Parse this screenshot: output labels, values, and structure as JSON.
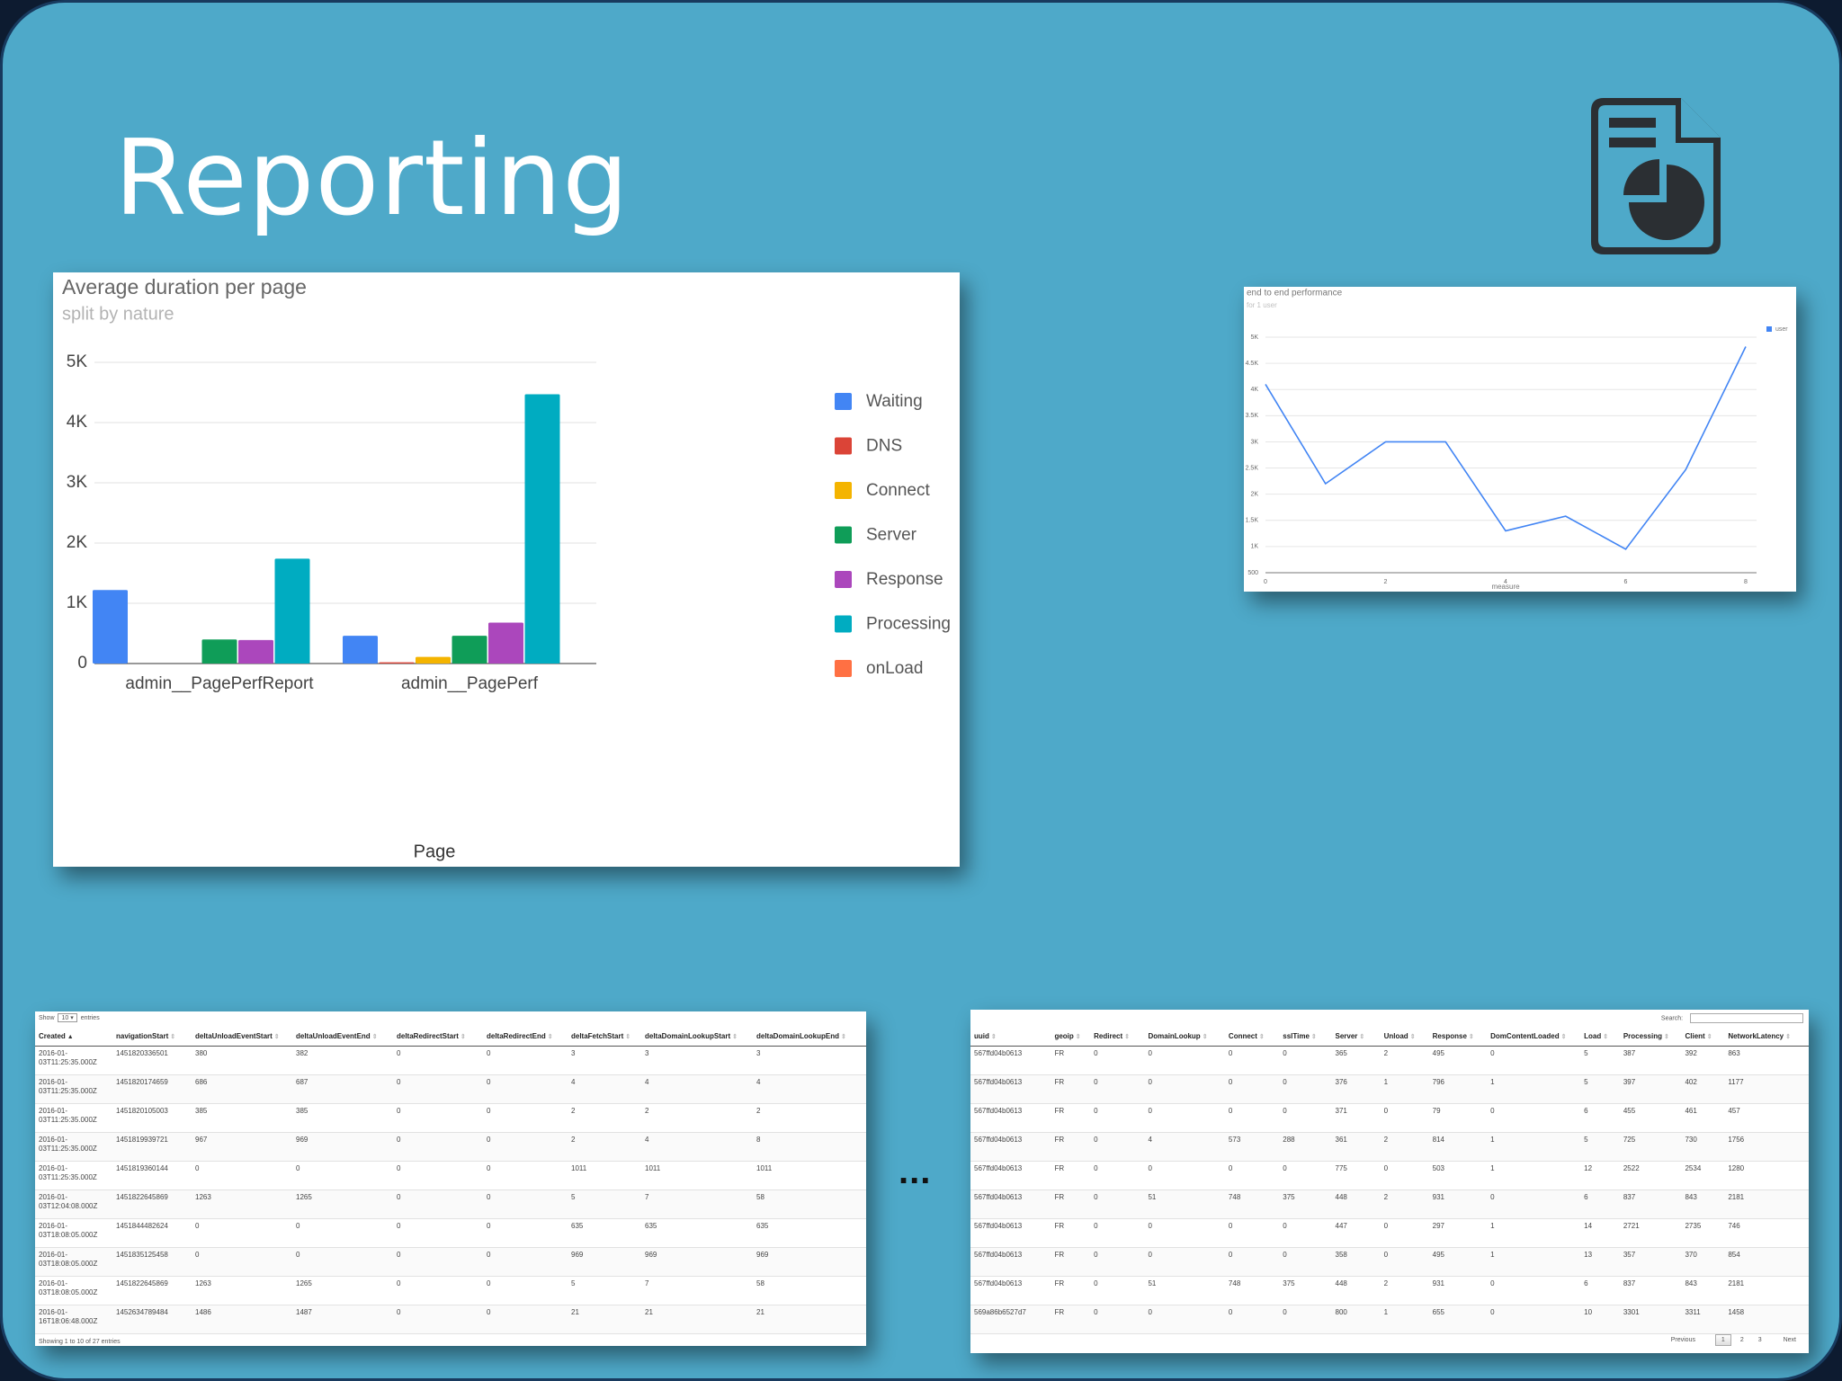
{
  "slide": {
    "title": "Reporting",
    "background_color": "#4ea9c9",
    "icon": "report-pie-document-icon",
    "ellipsis": "..."
  },
  "chart_data": [
    {
      "type": "bar",
      "title": "Average duration per page",
      "subtitle": "split by nature",
      "xlabel": "Page",
      "ylabel": "",
      "categories": [
        "admin__PagePerfReport",
        "admin__PagePerf"
      ],
      "yticks": [
        "0",
        "1K",
        "2K",
        "3K",
        "4K",
        "5K"
      ],
      "ylim": [
        0,
        5000
      ],
      "grid": true,
      "legend_position": "right",
      "series": [
        {
          "name": "Waiting",
          "color": "#4285f4",
          "values": [
            1220,
            460
          ]
        },
        {
          "name": "DNS",
          "color": "#db4437",
          "values": [
            0,
            20
          ]
        },
        {
          "name": "Connect",
          "color": "#f4b400",
          "values": [
            0,
            110
          ]
        },
        {
          "name": "Server",
          "color": "#0f9d58",
          "values": [
            400,
            460
          ]
        },
        {
          "name": "Response",
          "color": "#ab47bc",
          "values": [
            390,
            680
          ]
        },
        {
          "name": "Processing",
          "color": "#00acc1",
          "values": [
            1740,
            4470
          ]
        },
        {
          "name": "onLoad",
          "color": "#ff7043",
          "values": [
            0,
            0
          ]
        }
      ]
    },
    {
      "type": "line",
      "title": "end to end performance",
      "subtitle": "for 1 user",
      "xlabel": "measure",
      "ylabel": "",
      "x": [
        0,
        1,
        2,
        3,
        4,
        5,
        6,
        7,
        8
      ],
      "xticks": [
        "0",
        "2",
        "4",
        "6",
        "8"
      ],
      "xlim": [
        0,
        8
      ],
      "yticks": [
        "500",
        "1K",
        "1.5K",
        "2K",
        "2.5K",
        "3K",
        "3.5K",
        "4K",
        "4.5K",
        "5K"
      ],
      "ylim": [
        500,
        5000
      ],
      "grid": true,
      "legend_position": "top-right",
      "series": [
        {
          "name": "user",
          "color": "#4285f4",
          "values": [
            4100,
            2200,
            3000,
            3000,
            1300,
            1580,
            950,
            2470,
            4820
          ]
        }
      ]
    }
  ],
  "table1": {
    "length_prefix": "Show",
    "length_value": "10",
    "length_suffix": "entries",
    "columns": [
      "Created",
      "navigationStart",
      "deltaUnloadEventStart",
      "deltaUnloadEventEnd",
      "deltaRedirectStart",
      "deltaRedirectEnd",
      "deltaFetchStart",
      "deltaDomainLookupStart",
      "deltaDomainLookupEnd"
    ],
    "rows": [
      [
        "2016-01-03T11:25:35.000Z",
        "1451820336501",
        "380",
        "382",
        "0",
        "0",
        "3",
        "3",
        "3"
      ],
      [
        "2016-01-03T11:25:35.000Z",
        "1451820174659",
        "686",
        "687",
        "0",
        "0",
        "4",
        "4",
        "4"
      ],
      [
        "2016-01-03T11:25:35.000Z",
        "1451820105003",
        "385",
        "385",
        "0",
        "0",
        "2",
        "2",
        "2"
      ],
      [
        "2016-01-03T11:25:35.000Z",
        "1451819939721",
        "967",
        "969",
        "0",
        "0",
        "2",
        "4",
        "8"
      ],
      [
        "2016-01-03T11:25:35.000Z",
        "1451819360144",
        "0",
        "0",
        "0",
        "0",
        "1011",
        "1011",
        "1011"
      ],
      [
        "2016-01-03T12:04:08.000Z",
        "1451822645869",
        "1263",
        "1265",
        "0",
        "0",
        "5",
        "7",
        "58"
      ],
      [
        "2016-01-03T18:08:05.000Z",
        "1451844482624",
        "0",
        "0",
        "0",
        "0",
        "635",
        "635",
        "635"
      ],
      [
        "2016-01-03T18:08:05.000Z",
        "1451835125458",
        "0",
        "0",
        "0",
        "0",
        "969",
        "969",
        "969"
      ],
      [
        "2016-01-03T18:08:05.000Z",
        "1451822645869",
        "1263",
        "1265",
        "0",
        "0",
        "5",
        "7",
        "58"
      ],
      [
        "2016-01-16T18:06:48.000Z",
        "1452634789484",
        "1486",
        "1487",
        "0",
        "0",
        "21",
        "21",
        "21"
      ]
    ],
    "info": "Showing 1 to 10 of 27 entries"
  },
  "table2": {
    "search_label": "Search:",
    "columns": [
      "uuid",
      "geoip",
      "Redirect",
      "DomainLookup",
      "Connect",
      "sslTime",
      "Server",
      "Unload",
      "Response",
      "DomContentLoaded",
      "Load",
      "Processing",
      "Client",
      "NetworkLatency"
    ],
    "rows": [
      [
        "567ffd04b0613",
        "FR",
        "0",
        "0",
        "0",
        "0",
        "365",
        "2",
        "495",
        "0",
        "5",
        "387",
        "392",
        "863"
      ],
      [
        "567ffd04b0613",
        "FR",
        "0",
        "0",
        "0",
        "0",
        "376",
        "1",
        "796",
        "1",
        "5",
        "397",
        "402",
        "1177"
      ],
      [
        "567ffd04b0613",
        "FR",
        "0",
        "0",
        "0",
        "0",
        "371",
        "0",
        "79",
        "0",
        "6",
        "455",
        "461",
        "457"
      ],
      [
        "567ffd04b0613",
        "FR",
        "0",
        "4",
        "573",
        "288",
        "361",
        "2",
        "814",
        "1",
        "5",
        "725",
        "730",
        "1756"
      ],
      [
        "567ffd04b0613",
        "FR",
        "0",
        "0",
        "0",
        "0",
        "775",
        "0",
        "503",
        "1",
        "12",
        "2522",
        "2534",
        "1280"
      ],
      [
        "567ffd04b0613",
        "FR",
        "0",
        "51",
        "748",
        "375",
        "448",
        "2",
        "931",
        "0",
        "6",
        "837",
        "843",
        "2181"
      ],
      [
        "567ffd04b0613",
        "FR",
        "0",
        "0",
        "0",
        "0",
        "447",
        "0",
        "297",
        "1",
        "14",
        "2721",
        "2735",
        "746"
      ],
      [
        "567ffd04b0613",
        "FR",
        "0",
        "0",
        "0",
        "0",
        "358",
        "0",
        "495",
        "1",
        "13",
        "357",
        "370",
        "854"
      ],
      [
        "567ffd04b0613",
        "FR",
        "0",
        "51",
        "748",
        "375",
        "448",
        "2",
        "931",
        "0",
        "6",
        "837",
        "843",
        "2181"
      ],
      [
        "569a86b6527d7",
        "FR",
        "0",
        "0",
        "0",
        "0",
        "800",
        "1",
        "655",
        "0",
        "10",
        "3301",
        "3311",
        "1458"
      ]
    ],
    "pagination": {
      "previous": "Previous",
      "pages": [
        "1",
        "2",
        "3"
      ],
      "current": "1",
      "next": "Next"
    }
  }
}
